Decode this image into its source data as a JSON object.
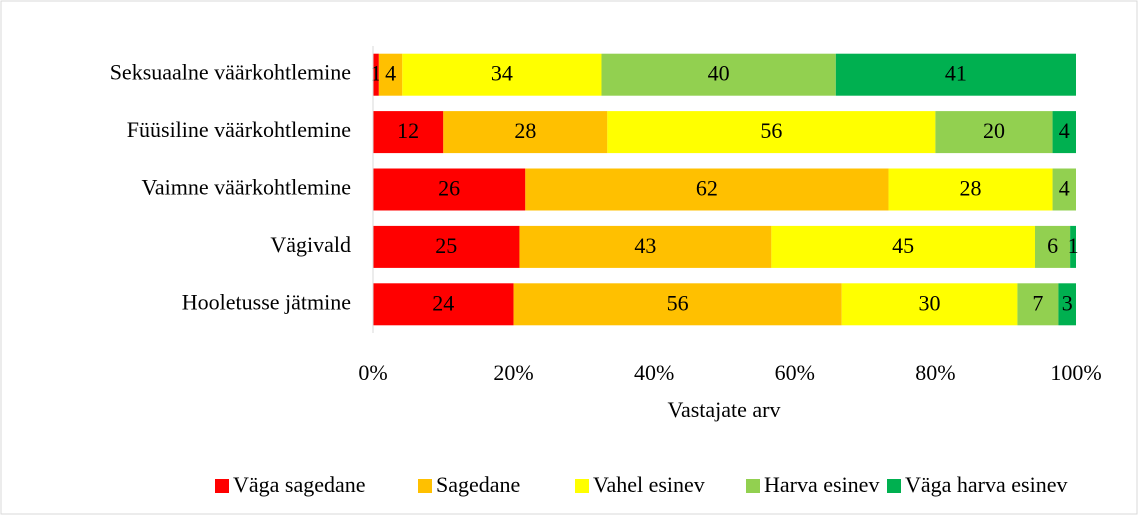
{
  "chart_data": {
    "type": "bar",
    "orientation": "horizontal",
    "stacked": "percent",
    "categories": [
      "Seksuaalne väärkohtlemine",
      "Füüsiline väärkohtlemine",
      "Vaimne väärkohtlemine",
      "Vägivald",
      "Hooletusse jätmine"
    ],
    "series": [
      {
        "name": "Väga sagedane",
        "color": "#ff0000",
        "values": [
          1,
          12,
          26,
          25,
          24
        ]
      },
      {
        "name": "Sagedane",
        "color": "#ffc000",
        "values": [
          4,
          28,
          62,
          43,
          56
        ]
      },
      {
        "name": "Vahel esinev",
        "color": "#ffff00",
        "values": [
          34,
          56,
          28,
          45,
          30
        ]
      },
      {
        "name": "Harva esinev",
        "color": "#92d050",
        "values": [
          40,
          20,
          4,
          6,
          7
        ]
      },
      {
        "name": "Väga harva esinev",
        "color": "#00b050",
        "values": [
          41,
          4,
          null,
          1,
          3
        ]
      }
    ],
    "xlim": [
      0,
      100
    ],
    "xticks": [
      {
        "value": 0,
        "label": "0%"
      },
      {
        "value": 20,
        "label": "20%"
      },
      {
        "value": 40,
        "label": "40%"
      },
      {
        "value": 60,
        "label": "60%"
      },
      {
        "value": 80,
        "label": "80%"
      },
      {
        "value": 100,
        "label": "100%"
      }
    ],
    "xlabel": "Vastajate arv",
    "legend": "bottom"
  }
}
